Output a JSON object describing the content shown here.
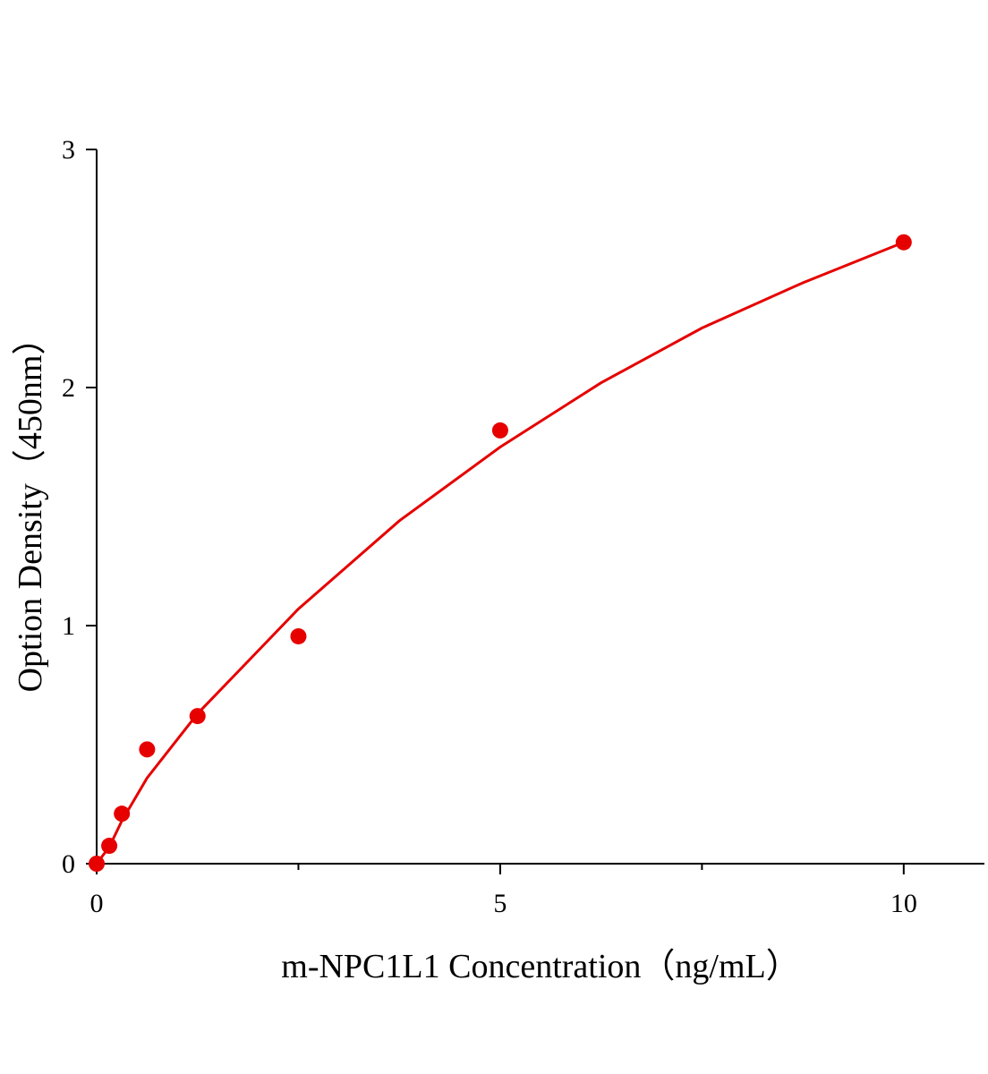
{
  "chart_data": {
    "type": "scatter",
    "x_label": "m-NPC1L1 Concentration（ng/mL）",
    "y_label": "Option Density（450nm）",
    "color": "#e60000",
    "x": [
      0,
      0.156,
      0.3125,
      0.625,
      1.25,
      2.5,
      5,
      10
    ],
    "values": [
      0,
      0.075,
      0.21,
      0.48,
      0.62,
      0.955,
      1.82,
      2.61
    ],
    "fit_curve": {
      "x": [
        0,
        0.156,
        0.3125,
        0.625,
        1.25,
        2.5,
        3.75,
        5,
        6.25,
        7.5,
        8.75,
        10
      ],
      "values": [
        0,
        0.07,
        0.18,
        0.36,
        0.63,
        1.07,
        1.44,
        1.75,
        2.02,
        2.25,
        2.44,
        2.61
      ]
    },
    "xlim": [
      0,
      11
    ],
    "ylim": [
      0,
      3
    ],
    "xticks": [
      0,
      5,
      10
    ],
    "xminor_ticks": [
      2.5,
      7.5
    ],
    "yticks": [
      0,
      1,
      2,
      3
    ]
  }
}
